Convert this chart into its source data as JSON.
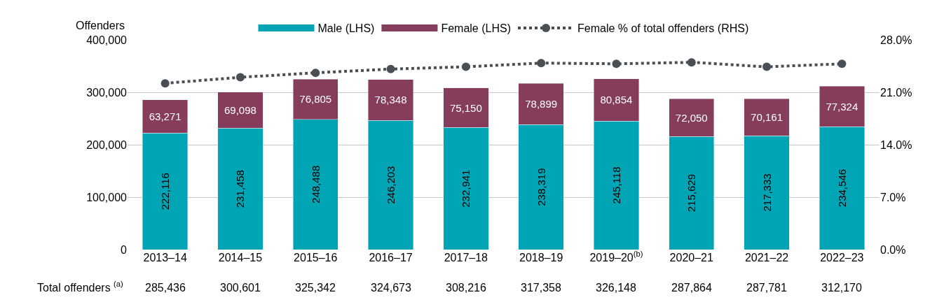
{
  "chart_data": {
    "type": "bar",
    "stacked": true,
    "ylabel": "Offenders",
    "categories": [
      "2013–14",
      "2014–15",
      "2015–16",
      "2016–17",
      "2017–18",
      "2018–19",
      "2019–20$^{(b)}$",
      "2020–21",
      "2021–22",
      "2022–23"
    ],
    "series": [
      {
        "name": "Male (LHS)",
        "color": "#00a5b5",
        "values": [
          222116,
          231458,
          248488,
          246203,
          232941,
          238319,
          245118,
          215629,
          217333,
          234546
        ],
        "value_labels": [
          "222,116",
          "231,458",
          "248,488",
          "246,203",
          "232,941",
          "238,319",
          "245,118",
          "215,629",
          "217,333",
          "234,546"
        ]
      },
      {
        "name": "Female (LHS)",
        "color": "#863c5b",
        "values": [
          63271,
          69098,
          76805,
          78348,
          75150,
          78899,
          80854,
          72050,
          70161,
          77324
        ],
        "value_labels": [
          "63,271",
          "69,098",
          "76,805",
          "78,348",
          "75,150",
          "78,899",
          "80,854",
          "72,050",
          "70,161",
          "77,324"
        ]
      },
      {
        "name": "Female % of total offenders (RHS)",
        "type": "line",
        "axis": "y2",
        "color": "#4a4f55",
        "marker": "circle",
        "line_style": "dotted",
        "values": [
          22.2,
          23.0,
          23.6,
          24.1,
          24.4,
          24.9,
          24.8,
          25.0,
          24.4,
          24.8
        ]
      }
    ],
    "annotations": [
      "Total offenders $^{(a)}$",
      "285,436",
      "300,601",
      "325,342",
      "324,673",
      "308,216",
      "317,358",
      "326,148",
      "287,864",
      "287,781",
      "312,170"
    ],
    "ylim": [
      0,
      400000
    ],
    "yticks": [
      {
        "value": 0,
        "label": "0"
      },
      {
        "value": 100000,
        "label": "100,000"
      },
      {
        "value": 200000,
        "label": "200,000"
      },
      {
        "value": 300000,
        "label": "300,000"
      },
      {
        "value": 400000,
        "label": "400,000"
      }
    ],
    "y2lim": [
      0,
      28
    ],
    "y2ticks": [
      {
        "value": 0,
        "label": "0.0%"
      },
      {
        "value": 7,
        "label": "7.0%"
      },
      {
        "value": 14,
        "label": "14.0%"
      },
      {
        "value": 21,
        "label": "21.0%"
      },
      {
        "value": 28,
        "label": "28.0%"
      }
    ],
    "grid": "y",
    "legend": "top"
  }
}
